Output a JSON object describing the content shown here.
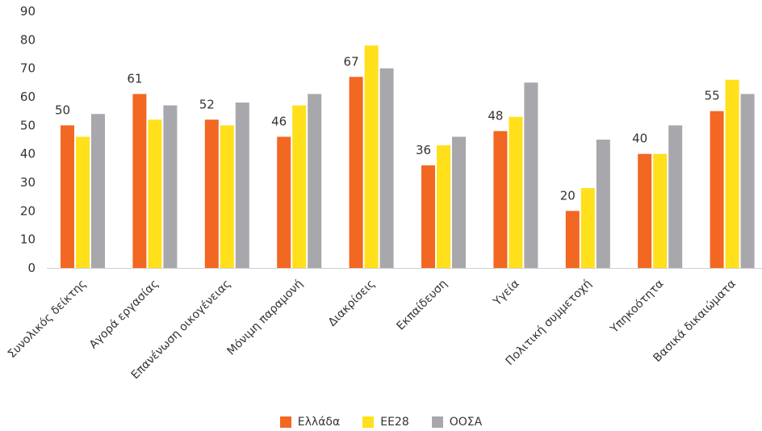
{
  "chart_data": {
    "type": "bar",
    "categories": [
      "Συνολικός δείκτης",
      "Αγορά εργασίας",
      "Επανένωση οικογένειας",
      "Μόνιμη παραμονή",
      "Διακρίσεις",
      "Εκπαίδευση",
      "Υγεία",
      "Πολιτική συμμετοχή",
      "Υπηκοότητα",
      "Βασικά δικαιώματα"
    ],
    "series": [
      {
        "name": "Ελλάδα",
        "color": "#F26722",
        "values": [
          50,
          61,
          52,
          46,
          67,
          36,
          48,
          20,
          40,
          55
        ],
        "labels_shown": true
      },
      {
        "name": "ΕΕ28",
        "color": "#FFE01B",
        "values": [
          46,
          52,
          50,
          57,
          78,
          43,
          53,
          28,
          40,
          66
        ],
        "labels_shown": false
      },
      {
        "name": "ΟΟΣΑ",
        "color": "#A8A7AC",
        "values": [
          54,
          57,
          58,
          61,
          70,
          46,
          65,
          45,
          50,
          61
        ],
        "labels_shown": false
      }
    ],
    "y_ticks": [
      "0",
      "10",
      "20",
      "30",
      "40",
      "50",
      "60",
      "70",
      "80",
      "90"
    ],
    "ylim": [
      0,
      90
    ],
    "title": "",
    "xlabel": "",
    "ylabel": "",
    "grid": false,
    "legend_position": "bottom-center"
  }
}
